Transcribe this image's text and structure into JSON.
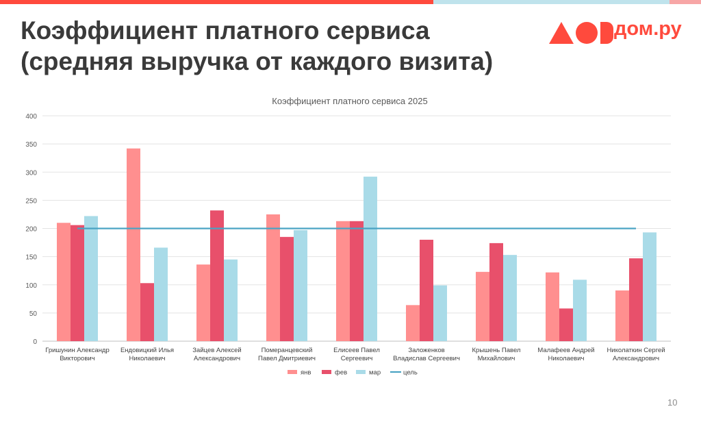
{
  "slide": {
    "title_line1": "Коэффициент платного сервиса",
    "title_line2": "(средняя выручка от каждого визита)",
    "logo_text": "дом.ру",
    "page_number": "10"
  },
  "chart_data": {
    "type": "bar",
    "title": "Коэффициент платного сервиса 2025",
    "categories": [
      [
        "Гришунин Александр",
        "Викторович"
      ],
      [
        "Ендовицкий Илья",
        "Николаевич"
      ],
      [
        "Зайцев Алексей",
        "Александрович"
      ],
      [
        "Померанцевский",
        "Павел Дмитриевич"
      ],
      [
        "Елисеев Павел",
        "Сергеевич"
      ],
      [
        "Заложенков",
        "Владислав Сергеевич"
      ],
      [
        "Крышень Павел",
        "Михайлович"
      ],
      [
        "Малафеев Андрей",
        "Николаевич"
      ],
      [
        "Николаткин Сергей",
        "Александрович"
      ]
    ],
    "series": [
      {
        "name": "янв",
        "color": "#ff8f8f",
        "values": [
          210,
          342,
          136,
          225,
          213,
          64,
          123,
          122,
          90
        ]
      },
      {
        "name": "фев",
        "color": "#e8506b",
        "values": [
          206,
          103,
          232,
          185,
          213,
          180,
          174,
          58,
          147
        ]
      },
      {
        "name": "мар",
        "color": "#a9dbe8",
        "values": [
          222,
          166,
          145,
          197,
          292,
          99,
          153,
          109,
          193
        ]
      }
    ],
    "target": {
      "name": "цель",
      "value": 200,
      "color": "#4aa3c3"
    },
    "ylim": [
      0,
      400
    ],
    "yticks": [
      0,
      50,
      100,
      150,
      200,
      250,
      300,
      350,
      400
    ],
    "grid": true,
    "legend": "bottom"
  }
}
